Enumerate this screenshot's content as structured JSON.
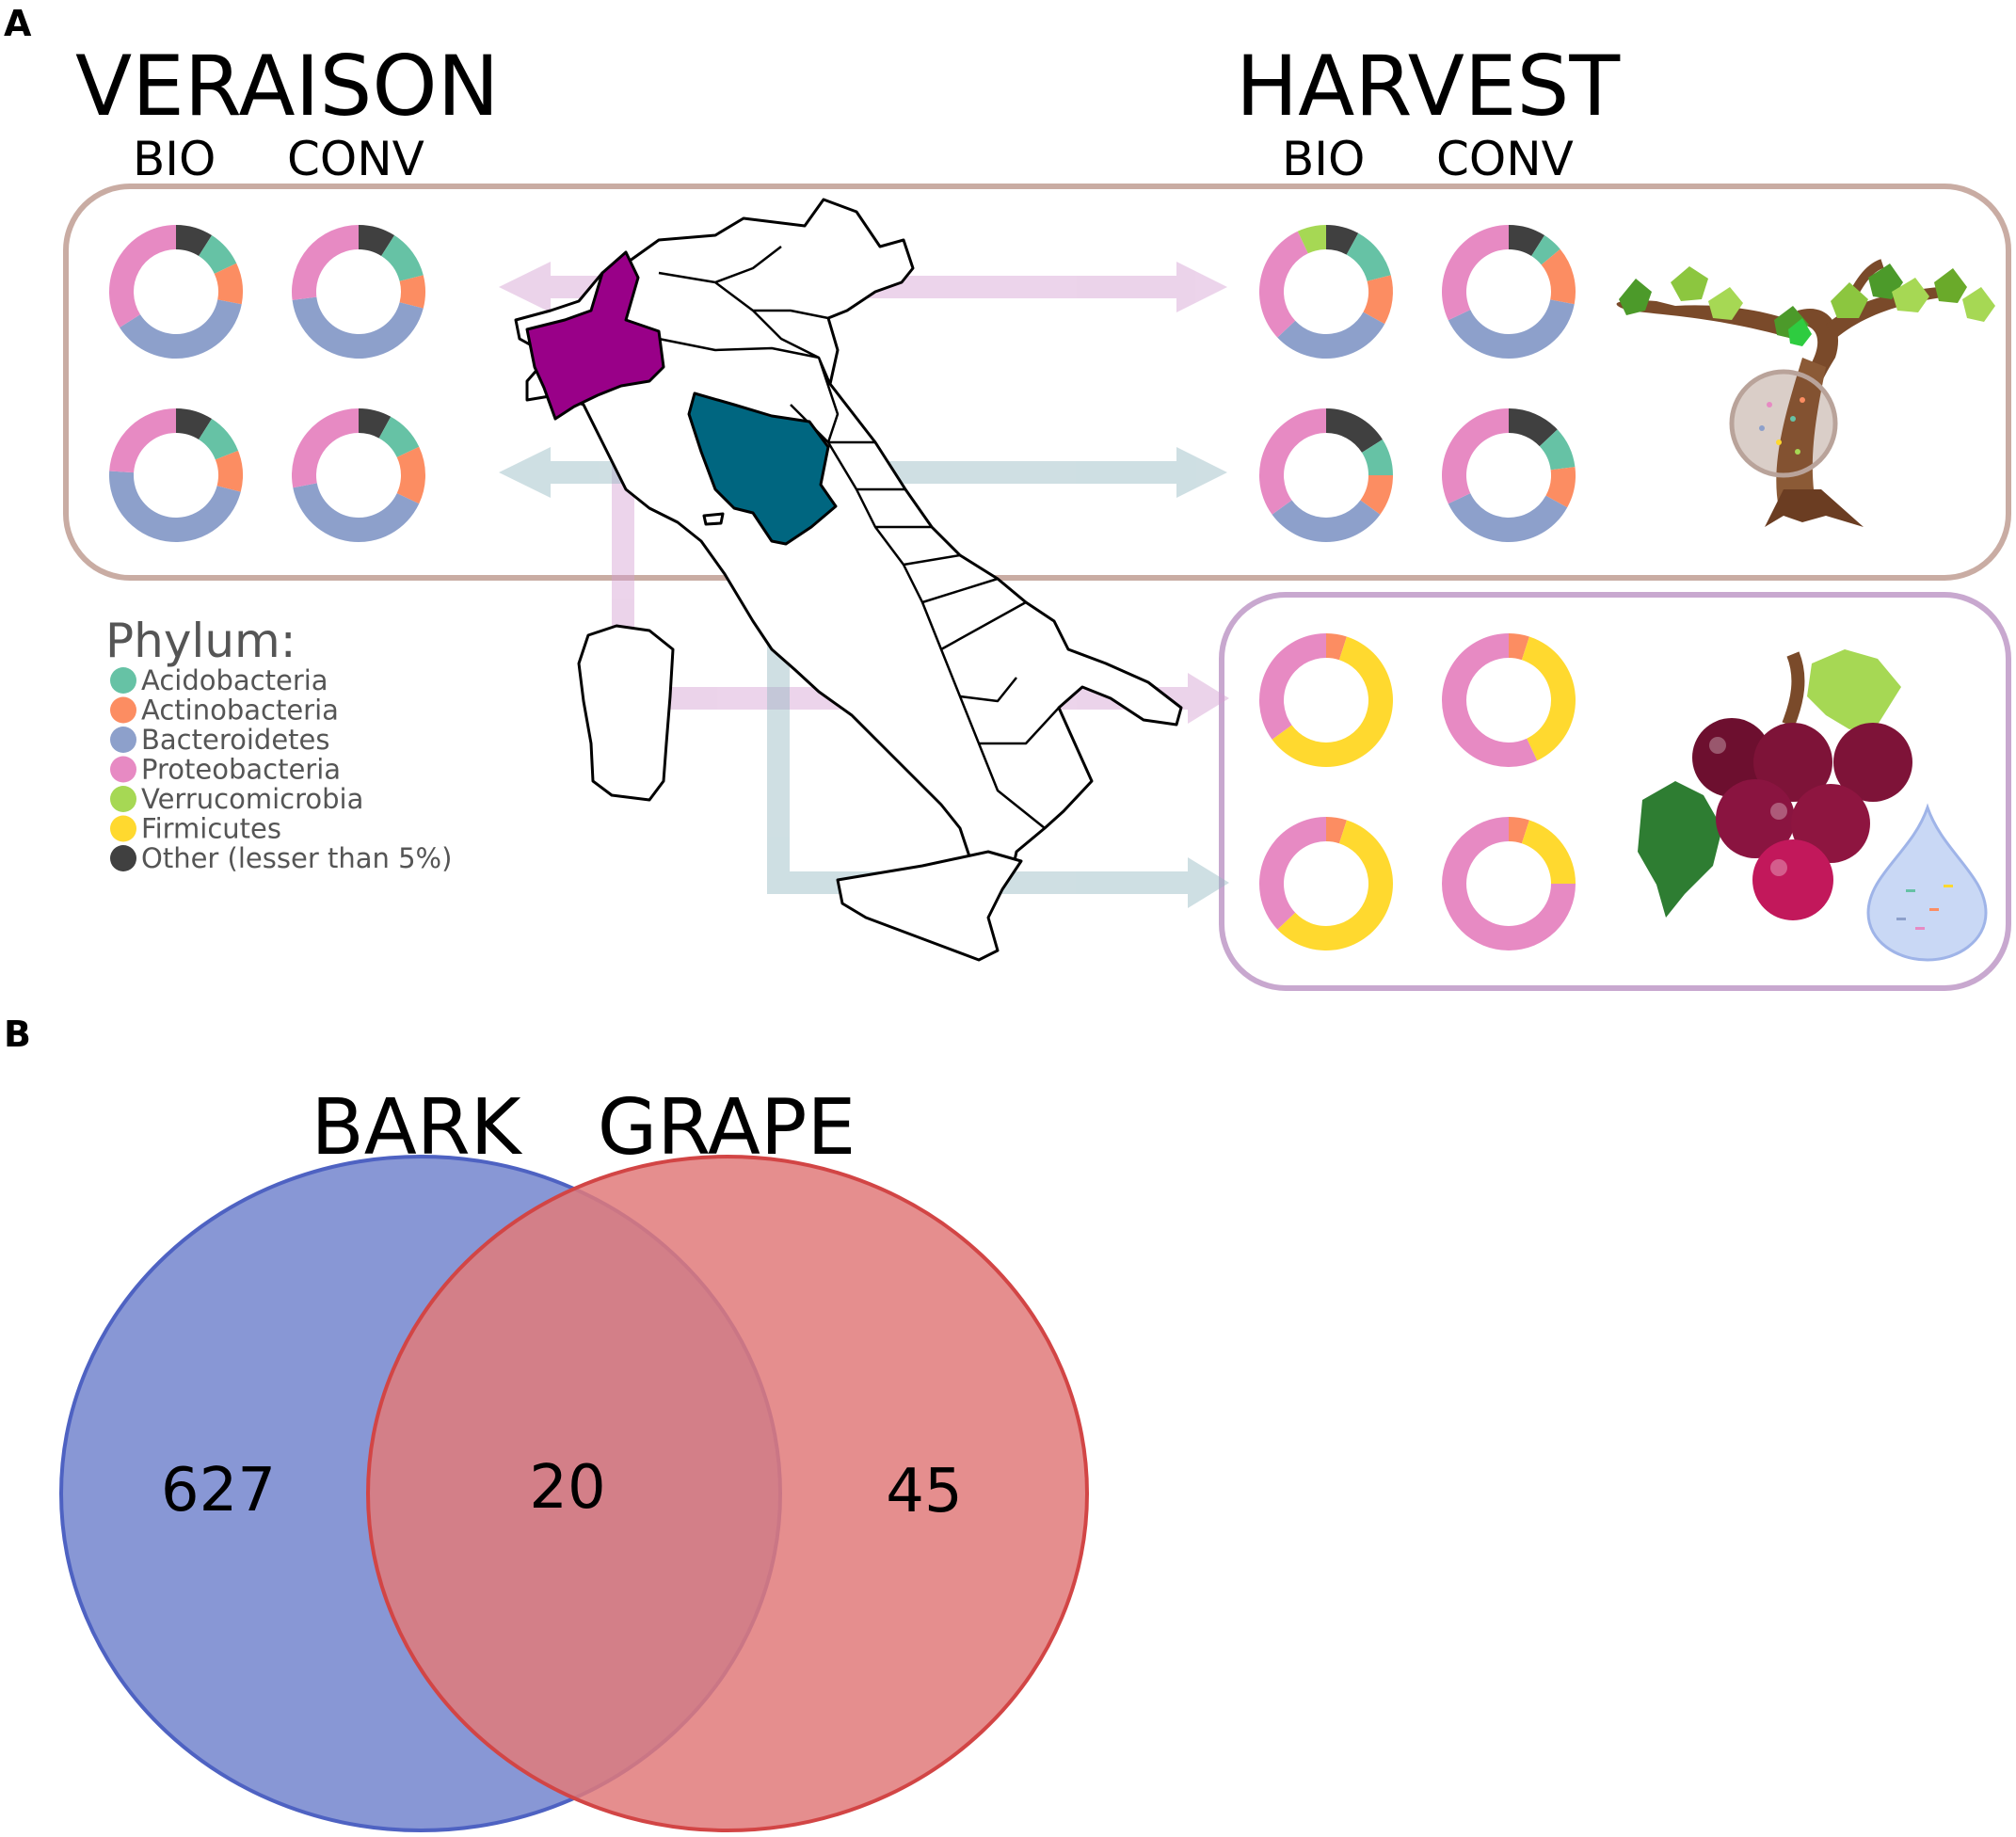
{
  "panel_a": {
    "letter": "A",
    "veraison": {
      "title": "VERAISON",
      "bio": "BIO",
      "conv": "CONV"
    },
    "harvest": {
      "title": "HARVEST",
      "bio": "BIO",
      "conv": "CONV"
    },
    "legend": {
      "title": "Phylum:",
      "items": [
        {
          "label": "Acidobacteria",
          "color": "#66c2a5"
        },
        {
          "label": "Actinobacteria",
          "color": "#fc8d62"
        },
        {
          "label": "Bacteroidetes",
          "color": "#8da0cb"
        },
        {
          "label": "Proteobacteria",
          "color": "#e78ac3"
        },
        {
          "label": "Verrucomicrobia",
          "color": "#a6d854"
        },
        {
          "label": "Firmicutes",
          "color": "#ffd92f"
        },
        {
          "label": "Other (lesser than 5%)",
          "color": "#404040"
        }
      ]
    },
    "regions": {
      "piedmont_color": "#990088",
      "tuscany_color": "#006680"
    },
    "donut_colors": {
      "Other": "#404040",
      "Verrucomicrobia": "#a6d854",
      "Acidobacteria": "#66c2a5",
      "Actinobacteria": "#fc8d62",
      "Bacteroidetes": "#8da0cb",
      "Proteobacteria": "#e78ac3",
      "Firmicutes": "#ffd92f"
    },
    "donuts": {
      "veraison_bio_piedmont": [
        [
          "Other",
          0.09
        ],
        [
          "Acidobacteria",
          0.09
        ],
        [
          "Actinobacteria",
          0.1
        ],
        [
          "Bacteroidetes",
          0.38
        ],
        [
          "Proteobacteria",
          0.34
        ]
      ],
      "veraison_conv_piedmont": [
        [
          "Other",
          0.09
        ],
        [
          "Acidobacteria",
          0.12
        ],
        [
          "Actinobacteria",
          0.08
        ],
        [
          "Bacteroidetes",
          0.44
        ],
        [
          "Proteobacteria",
          0.27
        ]
      ],
      "veraison_bio_tuscany": [
        [
          "Other",
          0.09
        ],
        [
          "Acidobacteria",
          0.1
        ],
        [
          "Actinobacteria",
          0.1
        ],
        [
          "Bacteroidetes",
          0.47
        ],
        [
          "Proteobacteria",
          0.24
        ]
      ],
      "veraison_conv_tuscany": [
        [
          "Other",
          0.08
        ],
        [
          "Acidobacteria",
          0.1
        ],
        [
          "Actinobacteria",
          0.14
        ],
        [
          "Bacteroidetes",
          0.4
        ],
        [
          "Proteobacteria",
          0.28
        ]
      ],
      "harvest_bio_piedmont": [
        [
          "Other",
          0.08
        ],
        [
          "Acidobacteria",
          0.13
        ],
        [
          "Actinobacteria",
          0.12
        ],
        [
          "Bacteroidetes",
          0.3
        ],
        [
          "Proteobacteria",
          0.3
        ],
        [
          "Verrucomicrobia",
          0.07
        ]
      ],
      "harvest_conv_piedmont": [
        [
          "Other",
          0.09
        ],
        [
          "Acidobacteria",
          0.05
        ],
        [
          "Actinobacteria",
          0.14
        ],
        [
          "Bacteroidetes",
          0.4
        ],
        [
          "Proteobacteria",
          0.32
        ]
      ],
      "harvest_bio_tuscany": [
        [
          "Other",
          0.16
        ],
        [
          "Acidobacteria",
          0.09
        ],
        [
          "Actinobacteria",
          0.1
        ],
        [
          "Bacteroidetes",
          0.3
        ],
        [
          "Proteobacteria",
          0.35
        ]
      ],
      "harvest_conv_tuscany": [
        [
          "Other",
          0.13
        ],
        [
          "Acidobacteria",
          0.1
        ],
        [
          "Actinobacteria",
          0.1
        ],
        [
          "Bacteroidetes",
          0.35
        ],
        [
          "Proteobacteria",
          0.32
        ]
      ],
      "grape_bio_piedmont": [
        [
          "Actinobacteria",
          0.05
        ],
        [
          "Firmicutes",
          0.6
        ],
        [
          "Proteobacteria",
          0.35
        ]
      ],
      "grape_conv_piedmont": [
        [
          "Actinobacteria",
          0.05
        ],
        [
          "Firmicutes",
          0.38
        ],
        [
          "Proteobacteria",
          0.57
        ]
      ],
      "grape_bio_tuscany": [
        [
          "Actinobacteria",
          0.05
        ],
        [
          "Firmicutes",
          0.58
        ],
        [
          "Proteobacteria",
          0.37
        ]
      ],
      "grape_conv_tuscany": [
        [
          "Actinobacteria",
          0.05
        ],
        [
          "Firmicutes",
          0.2
        ],
        [
          "Proteobacteria",
          0.75
        ]
      ]
    }
  },
  "panel_b": {
    "letter": "B",
    "sets": [
      {
        "name": "BARK",
        "color": "#7b8cd0"
      },
      {
        "name": "GRAPE",
        "color": "#e07a7a"
      }
    ],
    "only_bark": "627",
    "intersection": "20",
    "only_grape": "45"
  }
}
